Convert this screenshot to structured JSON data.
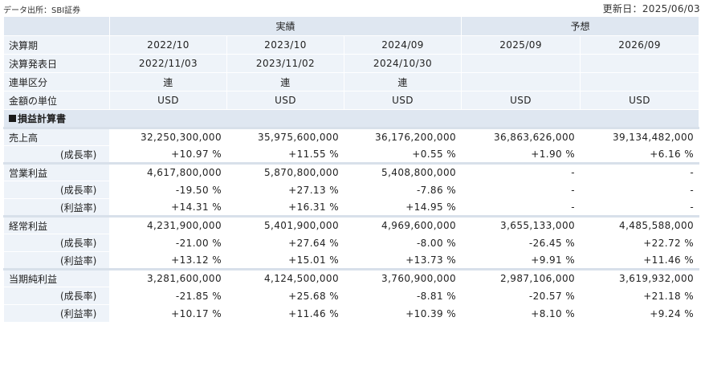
{
  "header": {
    "source": "データ出所：SBI証券",
    "updated": "更新日：2025/06/03"
  },
  "groups": {
    "actual": "実績",
    "forecast": "予想"
  },
  "labels": {
    "period": "決算期",
    "announce": "決算発表日",
    "consolidation": "連単区分",
    "unit": "金額の単位",
    "section": "損益計算書",
    "sales": "売上高",
    "growth": "(成長率)",
    "margin": "(利益率)",
    "op_income": "営業利益",
    "ord_income": "経常利益",
    "net_income": "当期純利益"
  },
  "periods": [
    "2022/10",
    "2023/10",
    "2024/09",
    "2025/09",
    "2026/09"
  ],
  "announce_dates": [
    "2022/11/03",
    "2023/11/02",
    "2024/10/30",
    "",
    ""
  ],
  "consolidation": [
    "連",
    "連",
    "連",
    "",
    ""
  ],
  "units": [
    "USD",
    "USD",
    "USD",
    "USD",
    "USD"
  ],
  "colors": {
    "positive": "#d6336c",
    "negative": "#2b9a88"
  },
  "rows": {
    "sales": [
      "32,250,300,000",
      "35,975,600,000",
      "36,176,200,000",
      "36,863,626,000",
      "39,134,482,000"
    ],
    "sales_growth": [
      "+10.97 %",
      "+11.55 %",
      "+0.55 %",
      "+1.90 %",
      "+6.16 %"
    ],
    "op_income": [
      "4,617,800,000",
      "5,870,800,000",
      "5,408,800,000",
      "-",
      "-"
    ],
    "op_growth": [
      "-19.50 %",
      "+27.13 %",
      "-7.86 %",
      "-",
      "-"
    ],
    "op_margin": [
      "+14.31 %",
      "+16.31 %",
      "+14.95 %",
      "-",
      "-"
    ],
    "ord_income": [
      "4,231,900,000",
      "5,401,900,000",
      "4,969,600,000",
      "3,655,133,000",
      "4,485,588,000"
    ],
    "ord_growth": [
      "-21.00 %",
      "+27.64 %",
      "-8.00 %",
      "-26.45 %",
      "+22.72 %"
    ],
    "ord_margin": [
      "+13.12 %",
      "+15.01 %",
      "+13.73 %",
      "+9.91 %",
      "+11.46 %"
    ],
    "net_income": [
      "3,281,600,000",
      "4,124,500,000",
      "3,760,900,000",
      "2,987,106,000",
      "3,619,932,000"
    ],
    "net_growth": [
      "-21.85 %",
      "+25.68 %",
      "-8.81 %",
      "-20.57 %",
      "+21.18 %"
    ],
    "net_margin": [
      "+10.17 %",
      "+11.46 %",
      "+10.39 %",
      "+8.10 %",
      "+9.24 %"
    ]
  }
}
